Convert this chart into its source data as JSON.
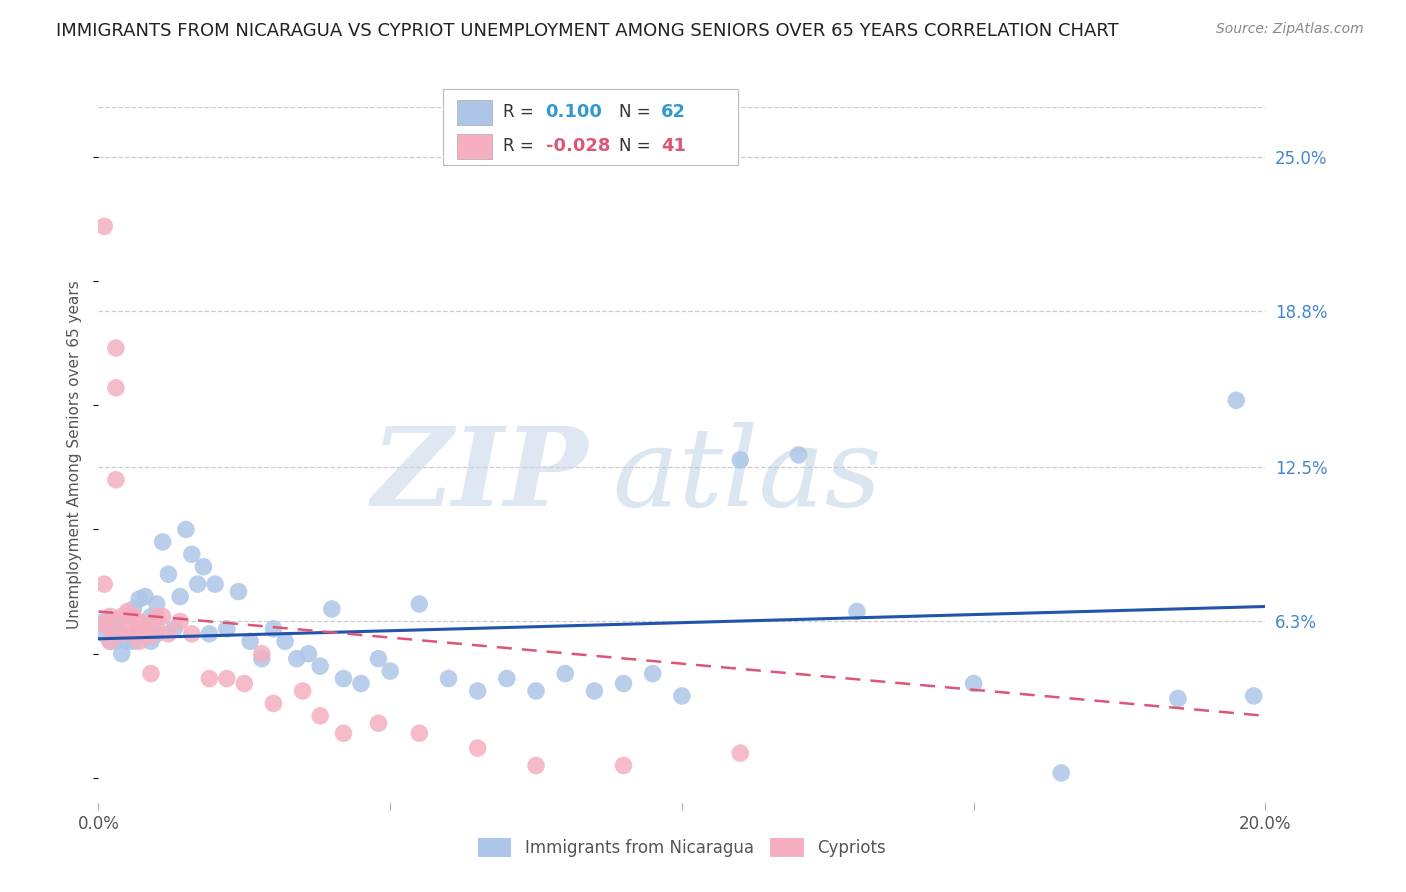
{
  "title": "IMMIGRANTS FROM NICARAGUA VS CYPRIOT UNEMPLOYMENT AMONG SENIORS OVER 65 YEARS CORRELATION CHART",
  "source": "Source: ZipAtlas.com",
  "ylabel": "Unemployment Among Seniors over 65 years",
  "xlim": [
    0.0,
    0.2
  ],
  "ylim": [
    -0.01,
    0.27
  ],
  "xticks": [
    0.0,
    0.05,
    0.1,
    0.15,
    0.2
  ],
  "xtick_labels": [
    "0.0%",
    "",
    "",
    "",
    "20.0%"
  ],
  "ytick_labels_right": [
    "25.0%",
    "18.8%",
    "12.5%",
    "6.3%"
  ],
  "ytick_positions_right": [
    0.25,
    0.188,
    0.125,
    0.063
  ],
  "background_color": "#ffffff",
  "grid_color": "#cccccc",
  "blue_color": "#adc6e8",
  "pink_color": "#f5afc0",
  "blue_line_color": "#2255aa",
  "pink_line_color": "#dd5577",
  "legend_label_blue": "Immigrants from Nicaragua",
  "legend_label_pink": "Cypriots",
  "blue_scatter_x": [
    0.001,
    0.001,
    0.002,
    0.002,
    0.003,
    0.003,
    0.004,
    0.004,
    0.005,
    0.005,
    0.006,
    0.006,
    0.007,
    0.007,
    0.008,
    0.008,
    0.009,
    0.009,
    0.01,
    0.01,
    0.011,
    0.012,
    0.013,
    0.014,
    0.015,
    0.016,
    0.017,
    0.018,
    0.019,
    0.02,
    0.022,
    0.024,
    0.026,
    0.028,
    0.03,
    0.032,
    0.034,
    0.036,
    0.038,
    0.04,
    0.042,
    0.045,
    0.048,
    0.05,
    0.055,
    0.06,
    0.065,
    0.07,
    0.075,
    0.08,
    0.085,
    0.09,
    0.095,
    0.1,
    0.11,
    0.12,
    0.13,
    0.15,
    0.165,
    0.185,
    0.195,
    0.198
  ],
  "blue_scatter_y": [
    0.063,
    0.058,
    0.06,
    0.055,
    0.063,
    0.055,
    0.058,
    0.05,
    0.065,
    0.055,
    0.068,
    0.055,
    0.072,
    0.06,
    0.073,
    0.06,
    0.065,
    0.055,
    0.07,
    0.058,
    0.095,
    0.082,
    0.06,
    0.073,
    0.1,
    0.09,
    0.078,
    0.085,
    0.058,
    0.078,
    0.06,
    0.075,
    0.055,
    0.048,
    0.06,
    0.055,
    0.048,
    0.05,
    0.045,
    0.068,
    0.04,
    0.038,
    0.048,
    0.043,
    0.07,
    0.04,
    0.035,
    0.04,
    0.035,
    0.042,
    0.035,
    0.038,
    0.042,
    0.033,
    0.128,
    0.13,
    0.067,
    0.038,
    0.002,
    0.032,
    0.152,
    0.033
  ],
  "pink_scatter_x": [
    0.001,
    0.001,
    0.001,
    0.002,
    0.002,
    0.002,
    0.003,
    0.003,
    0.003,
    0.004,
    0.004,
    0.005,
    0.005,
    0.006,
    0.006,
    0.007,
    0.007,
    0.008,
    0.008,
    0.009,
    0.009,
    0.01,
    0.01,
    0.011,
    0.012,
    0.014,
    0.016,
    0.019,
    0.022,
    0.025,
    0.028,
    0.03,
    0.035,
    0.038,
    0.042,
    0.048,
    0.055,
    0.065,
    0.075,
    0.09,
    0.11
  ],
  "pink_scatter_y": [
    0.222,
    0.078,
    0.062,
    0.065,
    0.06,
    0.055,
    0.173,
    0.157,
    0.12,
    0.065,
    0.058,
    0.067,
    0.06,
    0.065,
    0.058,
    0.063,
    0.055,
    0.062,
    0.058,
    0.057,
    0.042,
    0.065,
    0.06,
    0.065,
    0.058,
    0.063,
    0.058,
    0.04,
    0.04,
    0.038,
    0.05,
    0.03,
    0.035,
    0.025,
    0.018,
    0.022,
    0.018,
    0.012,
    0.005,
    0.005,
    0.01
  ],
  "blue_trend_x0": 0.0,
  "blue_trend_x1": 0.2,
  "blue_trend_y0": 0.056,
  "blue_trend_y1": 0.069,
  "pink_trend_x0": 0.0,
  "pink_trend_x1": 0.2,
  "pink_trend_y0": 0.067,
  "pink_trend_y1": 0.025
}
